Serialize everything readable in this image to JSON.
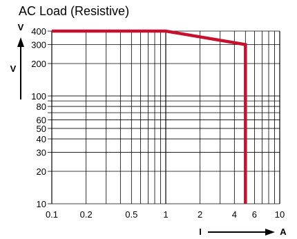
{
  "chart_data": {
    "type": "line",
    "title": "AC Load (Resistive)",
    "x_scale": "log",
    "y_scale": "log",
    "xlim": [
      0.1,
      10
    ],
    "ylim": [
      10,
      400
    ],
    "x_tick_labels": [
      {
        "value": 0.1,
        "label": "0.1"
      },
      {
        "value": 0.2,
        "label": "0.2"
      },
      {
        "value": 0.5,
        "label": "0.5"
      },
      {
        "value": 1,
        "label": "1"
      },
      {
        "value": 2,
        "label": "2"
      },
      {
        "value": 4,
        "label": "4"
      },
      {
        "value": 6,
        "label": "6"
      },
      {
        "value": 10,
        "label": "10"
      }
    ],
    "y_tick_labels": [
      {
        "value": 10,
        "label": "10"
      },
      {
        "value": 20,
        "label": "20"
      },
      {
        "value": 30,
        "label": "30"
      },
      {
        "value": 40,
        "label": "40"
      },
      {
        "value": 50,
        "label": "50"
      },
      {
        "value": 60,
        "label": "60"
      },
      {
        "value": 80,
        "label": "80"
      },
      {
        "value": 100,
        "label": "100"
      },
      {
        "value": 200,
        "label": "200"
      },
      {
        "value": 300,
        "label": "300"
      },
      {
        "value": 400,
        "label": "400"
      }
    ],
    "x_gridlines": [
      0.1,
      0.2,
      0.3,
      0.4,
      0.5,
      0.6,
      0.7,
      0.8,
      0.9,
      1,
      2,
      3,
      4,
      5,
      6,
      7,
      8,
      9,
      10
    ],
    "y_gridlines": [
      10,
      20,
      30,
      40,
      50,
      60,
      70,
      80,
      90,
      100,
      200,
      300,
      400
    ],
    "grid": true,
    "x_axis_label": "I",
    "x_axis_unit": "A",
    "y_axis_label": "V",
    "y_axis_unit": "V",
    "series": [
      {
        "color": "#c8102e",
        "points": [
          [
            0.1,
            400
          ],
          [
            1,
            400
          ],
          [
            5,
            300
          ],
          [
            5,
            10
          ]
        ]
      }
    ]
  }
}
